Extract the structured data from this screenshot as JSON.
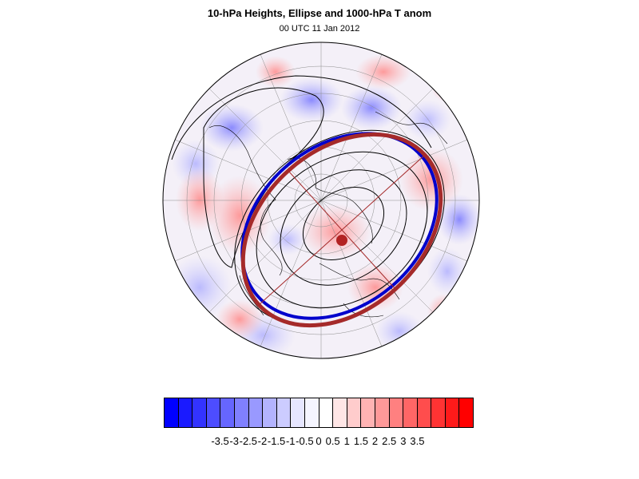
{
  "title": "10-hPa Heights, Ellipse and 1000-hPa T anom",
  "subtitle": "00 UTC 11 Jan 2012",
  "map": {
    "projection": "polar stereographic (north pole)",
    "field": "1000-hPa temperature anomaly (shaded)",
    "contours": "10-hPa geopotential heights",
    "ellipse_color": "#a52a2a",
    "height_contour_highlight_color": "#0000cc",
    "ellipse_center_color": "#b22222"
  },
  "colorbar": {
    "colors": [
      "#0000ff",
      "#1a1aff",
      "#3333ff",
      "#4d4dff",
      "#6666ff",
      "#8080ff",
      "#9999ff",
      "#b3b3ff",
      "#ccccff",
      "#e6e6ff",
      "#f5f5ff",
      "#ffffff",
      "#ffe6e6",
      "#ffcccc",
      "#ffb3b3",
      "#ff9999",
      "#ff8080",
      "#ff6666",
      "#ff4d4d",
      "#ff3333",
      "#ff1a1a",
      "#ff0000"
    ],
    "labels": [
      "-3.5",
      "-3",
      "-2.5",
      "-2",
      "-1.5",
      "-1",
      "-0.5",
      "0",
      "0.5",
      "1",
      "1.5",
      "2",
      "2.5",
      "3",
      "3.5"
    ]
  }
}
